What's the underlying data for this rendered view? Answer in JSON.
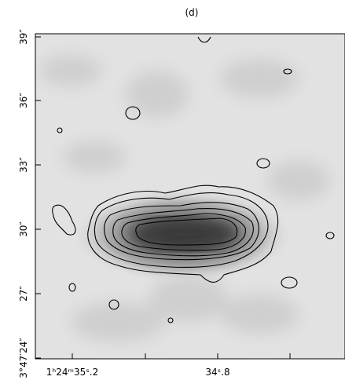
{
  "figure": {
    "label": "(d)",
    "yticks": [
      "3°47′24″",
      "27″",
      "30″",
      "33″",
      "36″",
      "39″"
    ],
    "xticks": [
      "1ʰ24ᵐ35ˢ.2",
      "34ˢ.8"
    ]
  }
}
